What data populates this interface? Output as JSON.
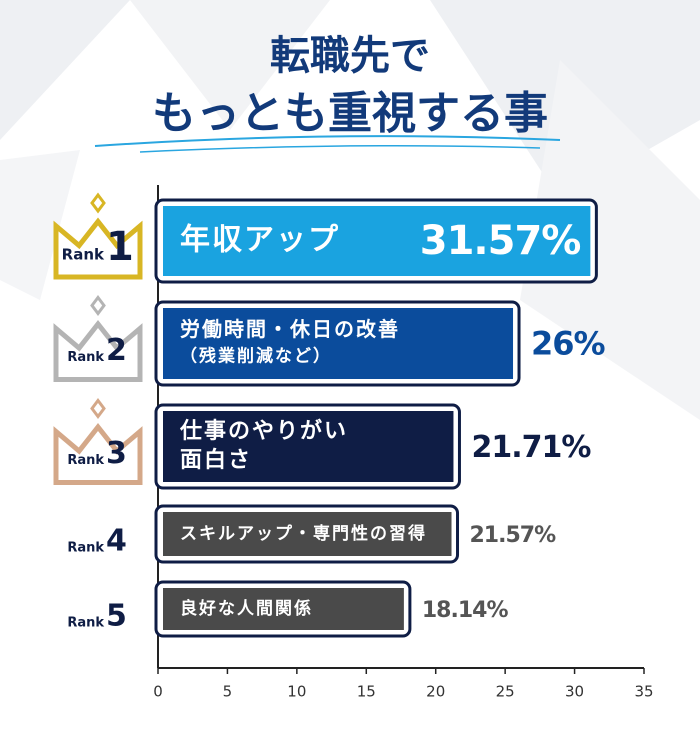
{
  "chart_data": {
    "type": "bar",
    "orientation": "horizontal",
    "title_lines": [
      "転職先で",
      "もっとも重視する事"
    ],
    "categories": [
      [
        "年収アップ"
      ],
      [
        "労働時間・休日の改善",
        "（残業削減など）"
      ],
      [
        "仕事のやりがい",
        "面白さ"
      ],
      [
        "スキルアップ・専門性の習得"
      ],
      [
        "良好な人間関係"
      ]
    ],
    "values": [
      31.57,
      26,
      21.71,
      21.57,
      18.14
    ],
    "value_labels": [
      "31.57%",
      "26%",
      "21.71%",
      "21.57%",
      "18.14%"
    ],
    "rank_label": "Rank",
    "ranks": [
      1,
      2,
      3,
      4,
      5
    ],
    "colors": [
      "#1aa3e0",
      "#0b4c9c",
      "#0f1d45",
      "#4a4a4a",
      "#4a4a4a"
    ],
    "label_colors": [
      "#ffffff",
      "#0b4c9c",
      "#0f1d45",
      "#555555",
      "#555555"
    ],
    "crown_colors": [
      "#d8b624",
      "#b4b4b4",
      "#d4a889"
    ],
    "xlim": [
      0,
      35
    ],
    "xticks": [
      0,
      5,
      10,
      15,
      20,
      25,
      30,
      35
    ]
  }
}
